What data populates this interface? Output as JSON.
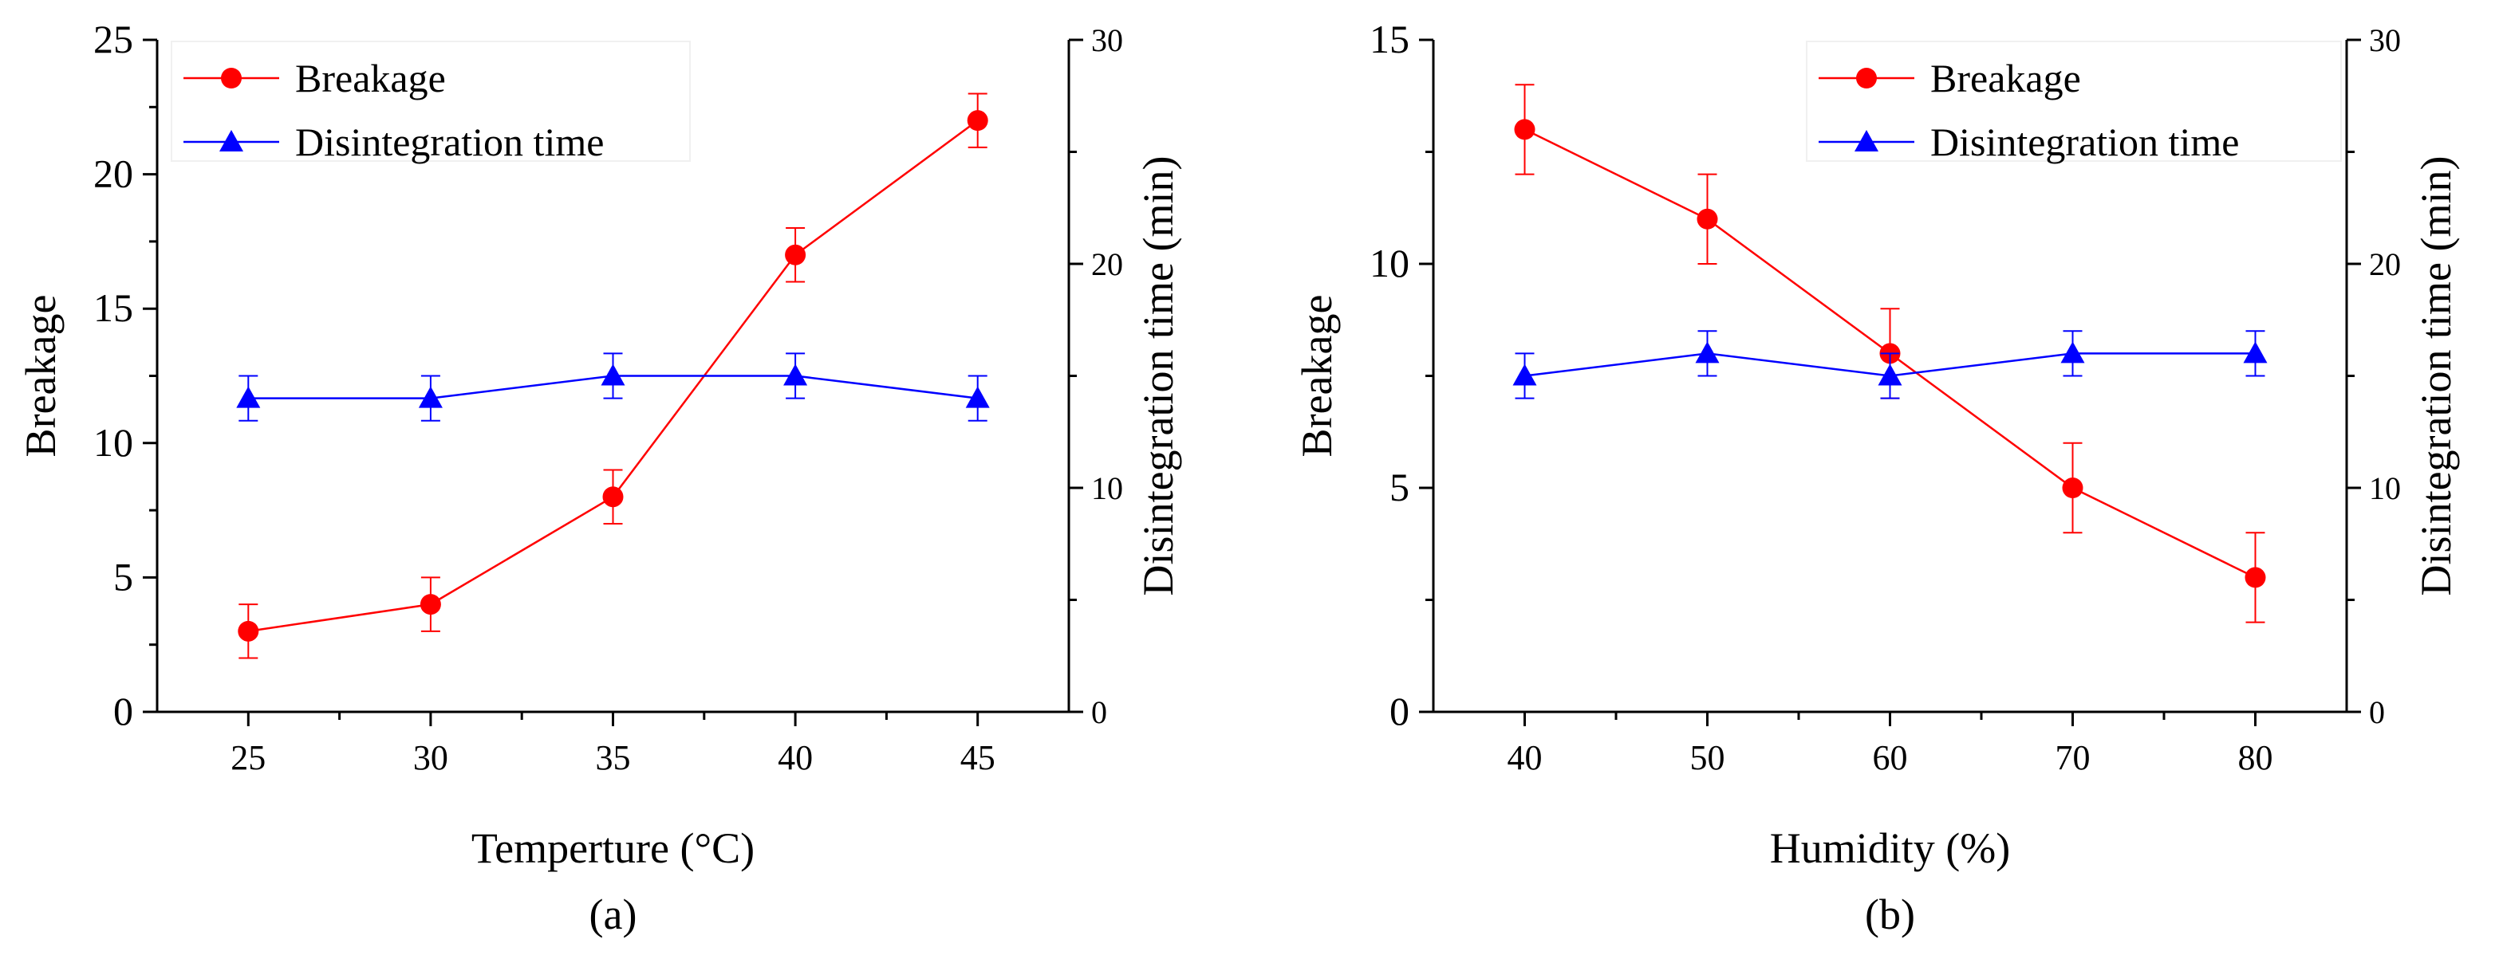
{
  "colors": {
    "breakage": "#ff0000",
    "disintegration": "#0000ff",
    "axis": "#000000",
    "background": "#ffffff"
  },
  "chart_data": [
    {
      "panel": "(a)",
      "type": "line",
      "title": "",
      "xlabel": "Temperture (°C)",
      "ylabel": "Breakage",
      "y2label": "Disintegration time (min)",
      "x": [
        25,
        30,
        35,
        40,
        45
      ],
      "xlim": [
        22.5,
        47.5
      ],
      "xticks": [
        25,
        30,
        35,
        40,
        45
      ],
      "ylim": [
        0,
        25
      ],
      "yticks": [
        0,
        5,
        10,
        15,
        20,
        25
      ],
      "y2lim": [
        0,
        30
      ],
      "y2ticks": [
        0,
        10,
        20,
        30
      ],
      "grid": false,
      "legend_position": "top-left",
      "series": [
        {
          "name": "Breakage",
          "axis": "left",
          "marker": "circle",
          "color": "#ff0000",
          "values": [
            3,
            4,
            8,
            17,
            22
          ],
          "errors": [
            1,
            1,
            1,
            1,
            1
          ]
        },
        {
          "name": "Disintegration time",
          "axis": "right",
          "marker": "triangle",
          "color": "#0000ff",
          "values": [
            14,
            14,
            15,
            15,
            14
          ],
          "errors": [
            1,
            1,
            1,
            1,
            1
          ]
        }
      ]
    },
    {
      "panel": "(b)",
      "type": "line",
      "title": "",
      "xlabel": "Humidity (%)",
      "ylabel": "Breakage",
      "y2label": "Disintegration time (min)",
      "x": [
        40,
        50,
        60,
        70,
        80
      ],
      "xlim": [
        35,
        85
      ],
      "xticks": [
        40,
        50,
        60,
        70,
        80
      ],
      "ylim": [
        0,
        15
      ],
      "yticks": [
        0,
        5,
        10,
        15
      ],
      "y2lim": [
        0,
        30
      ],
      "y2ticks": [
        0,
        10,
        20,
        30
      ],
      "grid": false,
      "legend_position": "top-right",
      "series": [
        {
          "name": "Breakage",
          "axis": "left",
          "marker": "circle",
          "color": "#ff0000",
          "values": [
            13,
            11,
            8,
            5,
            3
          ],
          "errors": [
            1,
            1,
            1,
            1,
            1
          ]
        },
        {
          "name": "Disintegration time",
          "axis": "right",
          "marker": "triangle",
          "color": "#0000ff",
          "values": [
            15,
            16,
            15,
            16,
            16
          ],
          "errors": [
            1,
            1,
            1,
            1,
            1
          ]
        }
      ]
    }
  ]
}
